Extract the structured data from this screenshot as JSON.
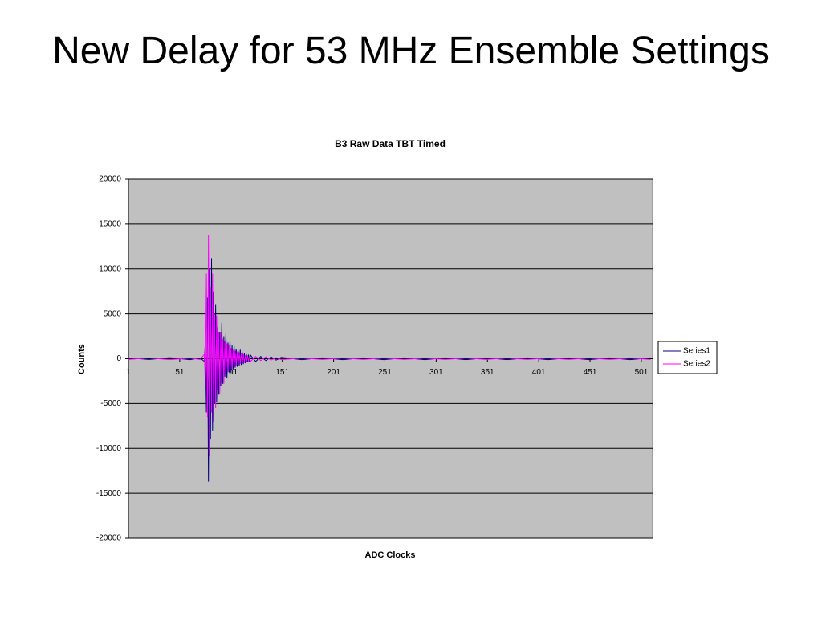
{
  "slide_title": "New Delay for 53 MHz Ensemble Settings",
  "chart_data": {
    "type": "line",
    "title": "B3 Raw Data TBT Timed",
    "x_label": "ADC Clocks",
    "y_label": "Counts",
    "x": [
      1,
      21,
      41,
      61,
      71,
      75,
      76,
      77,
      78,
      79,
      80,
      81,
      82,
      83,
      84,
      85,
      86,
      87,
      88,
      89,
      90,
      91,
      92,
      93,
      94,
      95,
      96,
      97,
      98,
      99,
      100,
      101,
      102,
      103,
      104,
      105,
      106,
      107,
      108,
      109,
      110,
      111,
      112,
      113,
      114,
      115,
      116,
      117,
      118,
      119,
      120,
      125,
      130,
      135,
      140,
      145,
      150,
      170,
      190,
      210,
      230,
      250,
      270,
      290,
      310,
      330,
      350,
      370,
      390,
      410,
      430,
      450,
      470,
      490,
      510
    ],
    "series": [
      {
        "name": "Series1",
        "color": "#000080",
        "values": [
          100,
          -80,
          120,
          -100,
          90,
          -300,
          2000,
          -6000,
          6800,
          -13700,
          10000,
          -9000,
          11200,
          -8000,
          7500,
          -5000,
          6000,
          -4800,
          3500,
          -4000,
          3000,
          -3000,
          4000,
          -2800,
          2500,
          -2000,
          2800,
          -2200,
          1800,
          -1500,
          2000,
          -1600,
          1500,
          -1200,
          1400,
          -1000,
          1100,
          -900,
          900,
          -800,
          1000,
          -700,
          700,
          -600,
          600,
          -500,
          500,
          -400,
          450,
          -350,
          400,
          -300,
          250,
          -200,
          200,
          -150,
          150,
          -100,
          100,
          -100,
          100,
          -100,
          100,
          -100,
          100,
          -100,
          100,
          -100,
          100,
          -100,
          100,
          -100,
          100,
          -100,
          100
        ]
      },
      {
        "name": "Series2",
        "color": "#ff00ff",
        "values": [
          -80,
          90,
          -100,
          80,
          -90,
          500,
          -3000,
          9500,
          -6500,
          13800,
          -10800,
          8000,
          -6000,
          9500,
          -7000,
          5000,
          -5500,
          4800,
          -3500,
          3000,
          -4000,
          3000,
          -2500,
          2200,
          -2800,
          2000,
          -1800,
          1700,
          -1500,
          1600,
          -1300,
          1200,
          -1100,
          1000,
          -1000,
          900,
          -800,
          800,
          -700,
          700,
          -600,
          600,
          -500,
          500,
          -450,
          400,
          -400,
          350,
          -300,
          300,
          -300,
          250,
          -200,
          200,
          -150,
          120,
          -100,
          80,
          -80,
          80,
          -80,
          80,
          -80,
          80,
          -80,
          80,
          -80,
          80,
          -80,
          80,
          -80,
          80,
          -80,
          80,
          -80
        ]
      }
    ],
    "xlim": [
      1,
      512
    ],
    "xticks": [
      1,
      51,
      101,
      151,
      201,
      251,
      301,
      351,
      401,
      451,
      501
    ],
    "ylim": [
      -20000,
      20000
    ],
    "yticks": [
      -20000,
      -15000,
      -10000,
      -5000,
      0,
      5000,
      10000,
      15000,
      20000
    ],
    "grid": true,
    "legend": "right"
  }
}
